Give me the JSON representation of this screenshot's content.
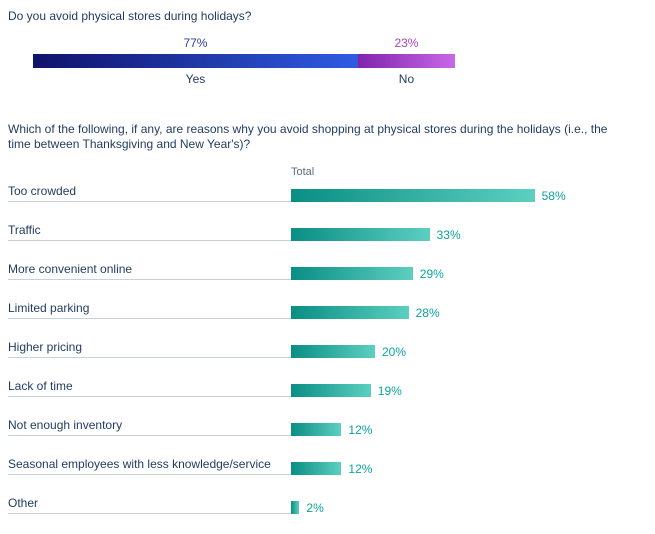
{
  "chart_data": [
    {
      "type": "bar",
      "variant": "horizontal-stacked",
      "title": "Do you avoid physical stores during holidays?",
      "categories": [
        "Yes",
        "No"
      ],
      "values": [
        77,
        23
      ],
      "value_labels": [
        "77%",
        "23%"
      ],
      "legend_position": "below-bar",
      "colors": {
        "yes_gradient": [
          "#10136a",
          "#2f5be3"
        ],
        "no_gradient": [
          "#8124ad",
          "#c867e8"
        ],
        "yes_value_label": "#2d3f9e",
        "no_value_label": "#a744c9"
      }
    },
    {
      "type": "bar",
      "variant": "horizontal",
      "title": "Which of the following, if any, are reasons why you avoid shopping at physical stores during the holidays (i.e., the time between Thanksgiving and New Year's)?",
      "series_header": "Total",
      "categories": [
        "Too crowded",
        "Traffic",
        "More convenient online",
        "Limited parking",
        "Higher pricing",
        "Lack of time",
        "Not enough inventory",
        "Seasonal employees with less knowledge/service",
        "Other"
      ],
      "values": [
        58,
        33,
        29,
        28,
        20,
        19,
        12,
        12,
        2
      ],
      "value_labels": [
        "58%",
        "33%",
        "29%",
        "28%",
        "20%",
        "19%",
        "12%",
        "12%",
        "2%"
      ],
      "xlim": [
        0,
        60
      ],
      "grid": false,
      "colors": {
        "bar_gradient": [
          "#0a8e84",
          "#5ccfc0"
        ],
        "value_label": "#0aa39b",
        "axis_line": "#c7d1da",
        "header": "#5f6b76",
        "text": "#1f3a5f"
      }
    }
  ]
}
